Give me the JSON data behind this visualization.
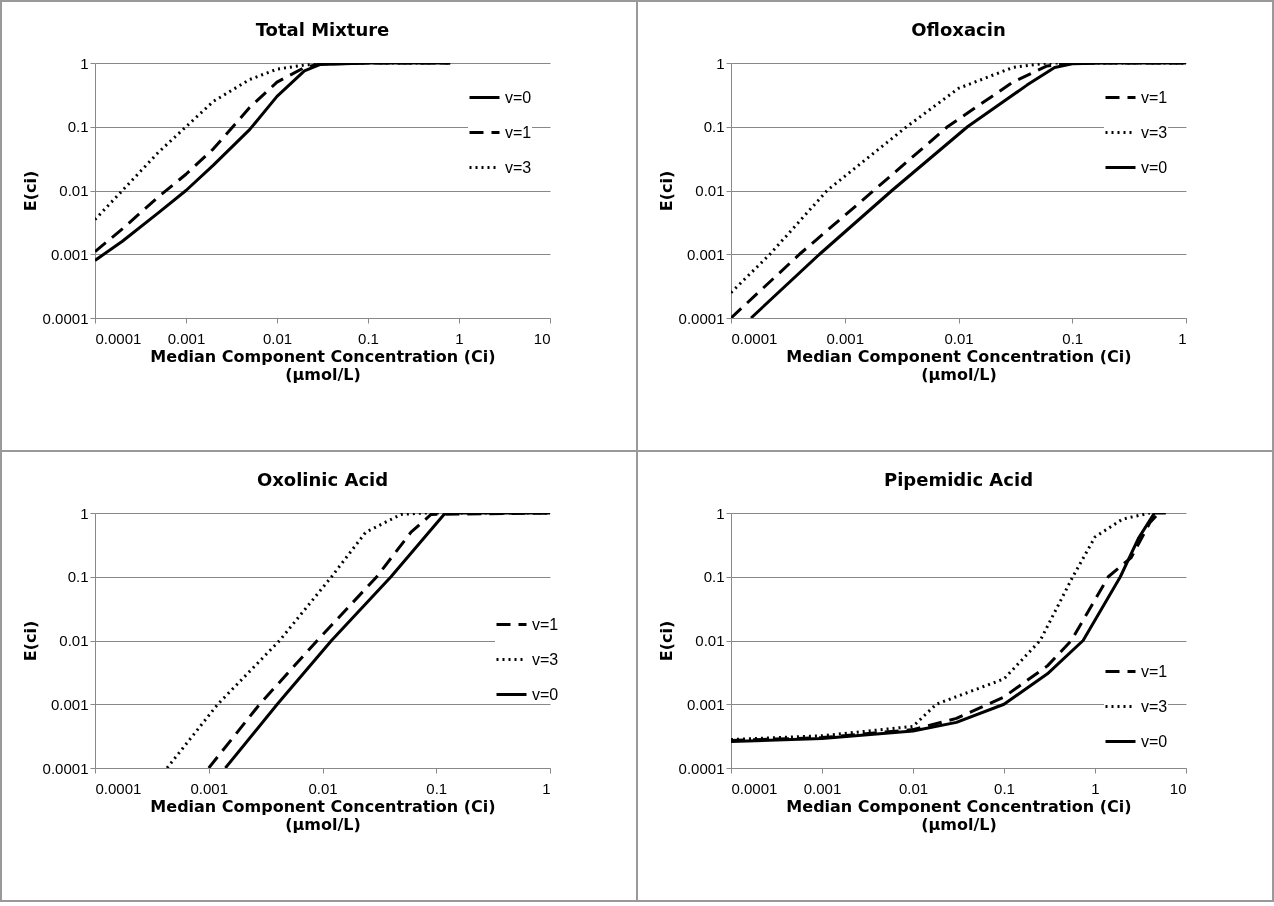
{
  "chart_data": [
    {
      "type": "line",
      "title": "Total Mixture",
      "xlabel": "Median Component Concentration (Ci)\n(μmol/L)",
      "ylabel": "E(ci)",
      "log": "xy",
      "grid": "y",
      "legend": "top right",
      "xlim": [
        0.0001,
        10
      ],
      "xticks": [
        0.0001,
        0.001,
        0.01,
        0.1,
        1,
        10
      ],
      "ylim": [
        0.0001,
        1
      ],
      "yticks": [
        0.0001,
        0.001,
        0.01,
        0.1,
        1
      ],
      "series": [
        {
          "name": "v=0",
          "color": "#000000",
          "line_style": "solid",
          "x": [
            0.0001,
            0.0002,
            0.0005,
            0.001,
            0.002,
            0.005,
            0.01,
            0.02,
            0.03,
            0.1,
            0.8
          ],
          "values": [
            0.0008,
            0.0016,
            0.0045,
            0.01,
            0.025,
            0.09,
            0.3,
            0.75,
            0.95,
            1,
            1
          ]
        },
        {
          "name": "v=1",
          "color": "#000000",
          "line_style": "dashed",
          "x": [
            0.0001,
            0.0002,
            0.0005,
            0.001,
            0.002,
            0.005,
            0.01,
            0.02,
            0.03,
            0.1,
            0.8
          ],
          "values": [
            0.0011,
            0.0025,
            0.008,
            0.018,
            0.045,
            0.2,
            0.5,
            0.85,
            0.97,
            1,
            1
          ]
        },
        {
          "name": "v=3",
          "color": "#000000",
          "line_style": "dotted",
          "x": [
            0.0001,
            0.0002,
            0.0005,
            0.001,
            0.002,
            0.005,
            0.01,
            0.02,
            0.05,
            0.8
          ],
          "values": [
            0.0035,
            0.01,
            0.04,
            0.1,
            0.25,
            0.55,
            0.8,
            0.93,
            1,
            1
          ]
        }
      ]
    },
    {
      "type": "line",
      "title": "Ofloxacin",
      "xlabel": "Median Component Concentration (Ci)\n(μmol/L)",
      "ylabel": "E(ci)",
      "log": "xy",
      "grid": "y",
      "legend": "top right",
      "xlim": [
        0.0001,
        1
      ],
      "xticks": [
        0.0001,
        0.001,
        0.01,
        0.1,
        1
      ],
      "ylim": [
        0.0001,
        1
      ],
      "yticks": [
        0.0001,
        0.001,
        0.01,
        0.1,
        1
      ],
      "series": [
        {
          "name": "v=1",
          "color": "#000000",
          "line_style": "dashed",
          "x": [
            0.0001,
            0.0004,
            0.0018,
            0.008,
            0.03,
            0.06,
            0.1,
            1
          ],
          "values": [
            0.0001,
            0.001,
            0.01,
            0.1,
            0.5,
            0.9,
            1,
            1
          ]
        },
        {
          "name": "v=3",
          "color": "#000000",
          "line_style": "dotted",
          "x": [
            0.0001,
            0.00022,
            0.0007,
            0.0035,
            0.01,
            0.03,
            0.06,
            1
          ],
          "values": [
            0.00025,
            0.001,
            0.01,
            0.1,
            0.4,
            0.85,
            1,
            1
          ]
        },
        {
          "name": "v=0",
          "color": "#000000",
          "line_style": "solid",
          "x": [
            0.00015,
            0.0006,
            0.0026,
            0.012,
            0.04,
            0.07,
            0.1,
            0.2,
            1
          ],
          "values": [
            0.0001,
            0.001,
            0.01,
            0.1,
            0.45,
            0.85,
            0.97,
            1,
            1
          ]
        }
      ]
    },
    {
      "type": "line",
      "title": "Oxolinic Acid",
      "xlabel": "Median Component Concentration (Ci)\n(μmol/L)",
      "ylabel": "E(ci)",
      "log": "xy",
      "grid": "y",
      "legend": "right",
      "xlim": [
        0.0001,
        1
      ],
      "xticks": [
        0.0001,
        0.001,
        0.01,
        0.1,
        1
      ],
      "ylim": [
        0.0001,
        1
      ],
      "yticks": [
        0.0001,
        0.001,
        0.01,
        0.1,
        1
      ],
      "series": [
        {
          "name": "v=1",
          "color": "#000000",
          "line_style": "dashed",
          "x": [
            0.001,
            0.0028,
            0.009,
            0.03,
            0.06,
            0.09,
            1
          ],
          "values": [
            0.0001,
            0.001,
            0.01,
            0.1,
            0.5,
            0.95,
            1
          ]
        },
        {
          "name": "v=3",
          "color": "#000000",
          "line_style": "dotted",
          "x": [
            0.00043,
            0.0012,
            0.0042,
            0.012,
            0.024,
            0.049,
            0.08,
            1
          ],
          "values": [
            0.0001,
            0.001,
            0.01,
            0.1,
            0.5,
            0.95,
            1,
            1
          ]
        },
        {
          "name": "v=0",
          "color": "#000000",
          "line_style": "solid",
          "x": [
            0.0014,
            0.004,
            0.012,
            0.04,
            0.12,
            1
          ],
          "values": [
            0.0001,
            0.001,
            0.01,
            0.1,
            1,
            1
          ]
        }
      ]
    },
    {
      "type": "line",
      "title": "Pipemidic Acid",
      "xlabel": "Median Component Concentration (Ci)\n(μmol/L)",
      "ylabel": "E(ci)",
      "log": "xy",
      "grid": "y",
      "legend": "bottom right",
      "xlim": [
        0.0001,
        10
      ],
      "xticks": [
        0.0001,
        0.001,
        0.01,
        0.1,
        1,
        10
      ],
      "ylim": [
        0.0001,
        1
      ],
      "yticks": [
        0.0001,
        0.001,
        0.01,
        0.1,
        1
      ],
      "series": [
        {
          "name": "v=1",
          "color": "#000000",
          "line_style": "dashed",
          "x": [
            0.0001,
            0.001,
            0.01,
            0.03,
            0.1,
            0.3,
            0.55,
            1.4,
            2.5,
            4,
            5
          ],
          "values": [
            0.00027,
            0.0003,
            0.0004,
            0.0006,
            0.0013,
            0.004,
            0.01,
            0.1,
            0.2,
            0.7,
            1
          ]
        },
        {
          "name": "v=3",
          "color": "#000000",
          "line_style": "dotted",
          "x": [
            0.0001,
            0.001,
            0.01,
            0.018,
            0.1,
            0.25,
            0.57,
            1,
            2,
            4
          ],
          "values": [
            0.00028,
            0.00032,
            0.00045,
            0.001,
            0.0025,
            0.01,
            0.1,
            0.42,
            0.8,
            1
          ]
        },
        {
          "name": "v=0",
          "color": "#000000",
          "line_style": "solid",
          "x": [
            0.0001,
            0.001,
            0.01,
            0.03,
            0.1,
            0.3,
            0.74,
            1.9,
            3,
            4.5,
            6
          ],
          "values": [
            0.00026,
            0.00029,
            0.00038,
            0.00052,
            0.001,
            0.003,
            0.01,
            0.1,
            0.4,
            1,
            1
          ]
        }
      ]
    }
  ]
}
